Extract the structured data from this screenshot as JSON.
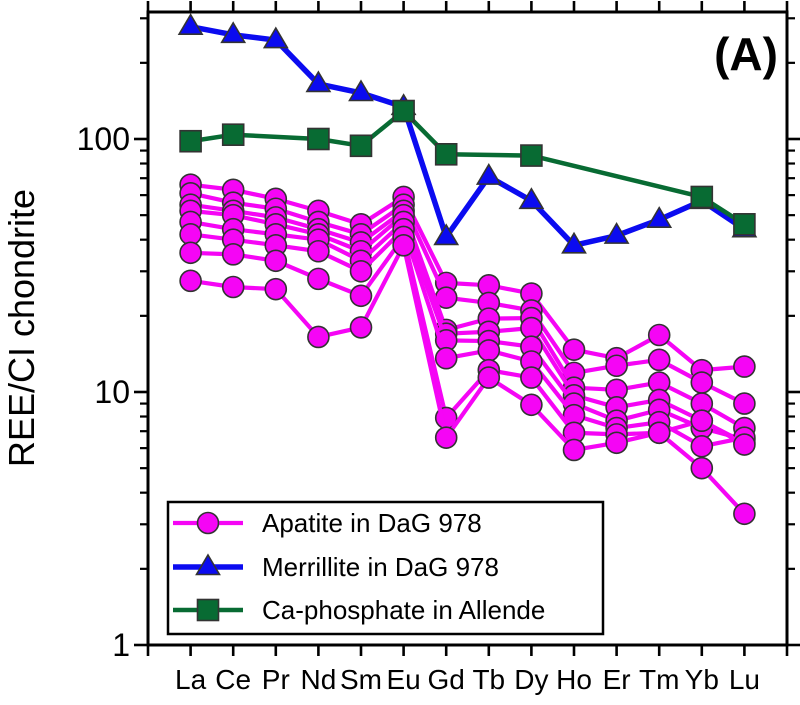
{
  "panel_label": "(A)",
  "y_axis": {
    "title": "REE/CI chondrite",
    "scale": "log",
    "tick_labels": [
      "1",
      "10",
      "100"
    ],
    "range": [
      1,
      316
    ]
  },
  "x_axis": {
    "categories": [
      "La",
      "Ce",
      "Pr",
      "Nd",
      "Sm",
      "Eu",
      "Gd",
      "Tb",
      "Dy",
      "Ho",
      "Er",
      "Tm",
      "Yb",
      "Lu"
    ]
  },
  "legend": {
    "items": [
      {
        "label": "Apatite in DaG 978",
        "marker": "circle",
        "color": "#F505F5"
      },
      {
        "label": "Merrillite in DaG 978",
        "marker": "triangle",
        "color": "#0B0BF0"
      },
      {
        "label": "Ca-phosphate in Allende",
        "marker": "square",
        "color": "#086B33"
      }
    ]
  },
  "colors": {
    "apatite": "#F505F5",
    "merrillite": "#0B0BF0",
    "ca_phosphate": "#086B33",
    "marker_edge": "#333333",
    "axis": "#000000"
  },
  "chart_data": {
    "type": "line",
    "x_categories": [
      "La",
      "Ce",
      "Pr",
      "Nd",
      "Sm",
      "Eu",
      "Gd",
      "Tb",
      "Dy",
      "Ho",
      "Er",
      "Tm",
      "Yb",
      "Lu"
    ],
    "yscale": "log",
    "ylim": [
      1,
      316
    ],
    "ylabel": "REE/CI chondrite",
    "legend_position": "bottom-left-inside",
    "grid": false,
    "series": [
      {
        "name": "Apatite in DaG 978",
        "marker": "circle",
        "color": "#F505F5",
        "values": [
          66,
          63,
          58,
          52,
          46,
          59,
          27,
          26.4,
          24.5,
          14.7,
          13.6,
          16.8,
          12.2,
          12.6
        ]
      },
      {
        "name": "Apatite in DaG 978",
        "marker": "circle",
        "color": "#F505F5",
        "values": [
          61,
          56,
          53,
          47,
          42,
          55,
          23.6,
          22.5,
          21,
          11.9,
          12.7,
          13.4,
          10.9,
          9.0
        ]
      },
      {
        "name": "Apatite in DaG 978",
        "marker": "circle",
        "color": "#F505F5",
        "values": [
          55,
          52,
          49,
          44,
          39,
          52,
          17.6,
          19.5,
          19.6,
          10.4,
          10.2,
          10.9,
          9.0,
          7.2
        ]
      },
      {
        "name": "Apatite in DaG 978",
        "marker": "circle",
        "color": "#F505F5",
        "values": [
          52,
          50,
          46,
          42,
          36,
          50,
          17.0,
          17.3,
          17.9,
          9.7,
          8.7,
          9.3,
          7.7,
          6.3
        ]
      },
      {
        "name": "Apatite in DaG 978",
        "marker": "circle",
        "color": "#F505F5",
        "values": [
          47,
          44,
          42,
          40,
          33,
          47,
          16.0,
          15.9,
          15.1,
          9.0,
          7.7,
          8.5,
          7.2,
          6.5
        ]
      },
      {
        "name": "Apatite in DaG 978",
        "marker": "circle",
        "color": "#F505F5",
        "values": [
          42,
          40,
          38,
          36,
          30,
          44,
          13.6,
          14.6,
          13.2,
          8.1,
          7.2,
          7.6,
          6.1,
          6.6
        ]
      },
      {
        "name": "Apatite in DaG 978",
        "marker": "circle",
        "color": "#F505F5",
        "values": [
          35.5,
          35,
          33,
          28,
          24,
          41,
          7.9,
          12.2,
          11.4,
          6.9,
          6.8,
          6.9,
          7.7,
          6.2
        ]
      },
      {
        "name": "Apatite in DaG 978",
        "marker": "circle",
        "color": "#F505F5",
        "values": [
          27.5,
          26,
          25.5,
          16.5,
          18,
          38,
          6.6,
          11.4,
          8.9,
          5.9,
          6.3,
          6.9,
          5.0,
          3.3
        ]
      },
      {
        "name": "Merrillite in DaG 978",
        "marker": "triangle",
        "color": "#0B0BF0",
        "values": [
          278,
          258,
          246,
          165,
          152,
          134,
          41,
          71,
          57,
          38,
          41.5,
          48,
          57,
          44
        ]
      },
      {
        "name": "Ca-phosphate in Allende",
        "marker": "square",
        "color": "#086B33",
        "values": [
          98,
          104,
          null,
          100,
          94,
          129,
          87,
          null,
          86,
          null,
          null,
          null,
          59,
          46
        ]
      }
    ]
  }
}
